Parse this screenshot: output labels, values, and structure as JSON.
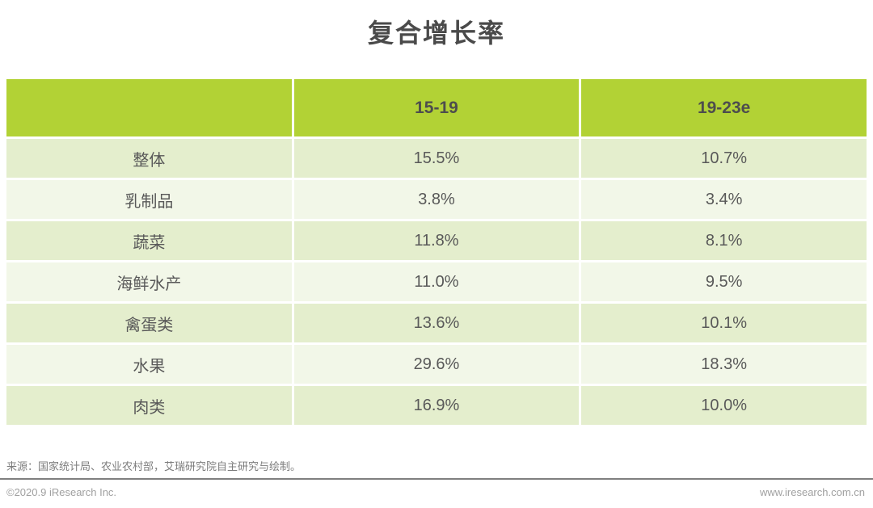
{
  "title": "复合增长率",
  "table": {
    "columns": [
      "",
      "15-19",
      "19-23e"
    ],
    "rows": [
      {
        "label": "整体",
        "v1": "15.5%",
        "v2": "10.7%"
      },
      {
        "label": "乳制品",
        "v1": "3.8%",
        "v2": "3.4%"
      },
      {
        "label": "蔬菜",
        "v1": "11.8%",
        "v2": "8.1%"
      },
      {
        "label": "海鲜水产",
        "v1": "11.0%",
        "v2": "9.5%"
      },
      {
        "label": "禽蛋类",
        "v1": "13.6%",
        "v2": "10.1%"
      },
      {
        "label": "水果",
        "v1": "29.6%",
        "v2": "18.3%"
      },
      {
        "label": "肉类",
        "v1": "16.9%",
        "v2": "10.0%"
      }
    ]
  },
  "chart_data": {
    "type": "table",
    "title": "复合增长率",
    "categories": [
      "整体",
      "乳制品",
      "蔬菜",
      "海鲜水产",
      "禽蛋类",
      "水果",
      "肉类"
    ],
    "series": [
      {
        "name": "15-19",
        "values": [
          15.5,
          3.8,
          11.8,
          11.0,
          13.6,
          29.6,
          16.9
        ]
      },
      {
        "name": "19-23e",
        "values": [
          10.7,
          3.4,
          8.1,
          9.5,
          10.1,
          18.3,
          10.0
        ]
      }
    ],
    "unit": "%",
    "legend_position": "none",
    "grid": false
  },
  "footer": {
    "source": "来源：国家统计局、农业农村部，艾瑞研究院自主研究与绘制。",
    "copyright": "©2020.9 iResearch Inc.",
    "website": "www.iresearch.com.cn"
  },
  "colors": {
    "header_green": "#b2d235",
    "row_dark": "#e4eecd",
    "row_light": "#f2f7e8",
    "title_text": "#4a4a4a",
    "cell_text": "#595959",
    "rule_gray": "#7f7f7f"
  }
}
